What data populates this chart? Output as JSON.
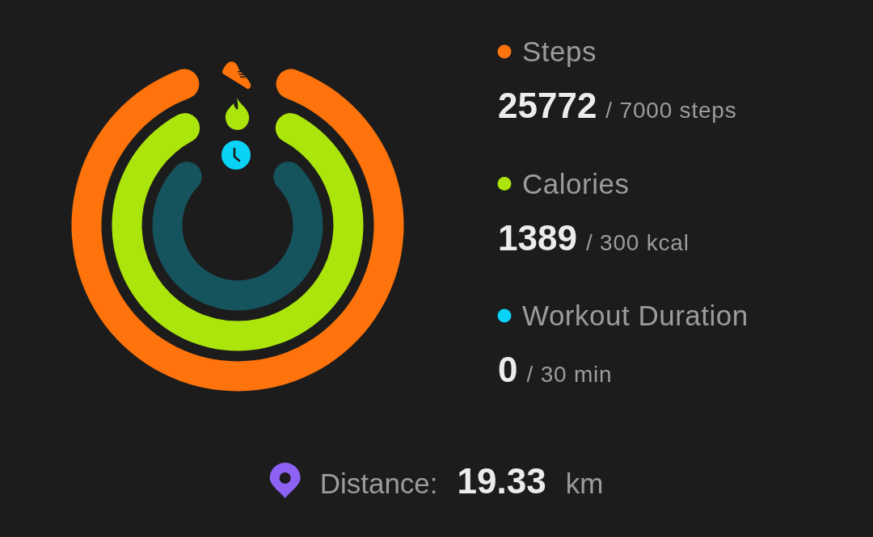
{
  "chart_data": {
    "type": "other",
    "categories": [
      "Steps",
      "Calories",
      "Workout Duration"
    ],
    "values": [
      25772,
      1389,
      0
    ],
    "colors": [
      "#fe730b",
      "#abe50c",
      "#08d3f6"
    ],
    "data_labels": true,
    "annotations": [
      "/ 7000 steps",
      "/ 300 kcal",
      "/ 30 min",
      "Distance:",
      "19.33",
      "km"
    ]
  }
}
